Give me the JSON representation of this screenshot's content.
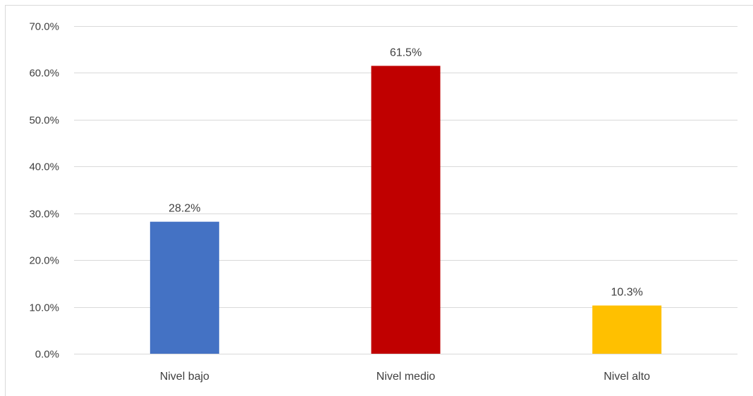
{
  "chart_data": {
    "type": "bar",
    "title": "",
    "xlabel": "",
    "ylabel": "",
    "categories": [
      "Nivel bajo",
      "Nivel medio",
      "Nivel alto"
    ],
    "values": [
      28.2,
      61.5,
      10.3
    ],
    "data_labels": [
      "28.2%",
      "61.5%",
      "10.3%"
    ],
    "colors": [
      "#4472c4",
      "#c00000",
      "#ffc000"
    ],
    "ylim": [
      0,
      70
    ],
    "yticks": [
      0,
      10,
      20,
      30,
      40,
      50,
      60,
      70
    ],
    "ytick_labels": [
      "0.0%",
      "10.0%",
      "20.0%",
      "30.0%",
      "40.0%",
      "50.0%",
      "60.0%",
      "70.0%"
    ],
    "grid": true,
    "legend": "none",
    "gridline_color": "#d9d9d9",
    "label_color": "#404040"
  }
}
